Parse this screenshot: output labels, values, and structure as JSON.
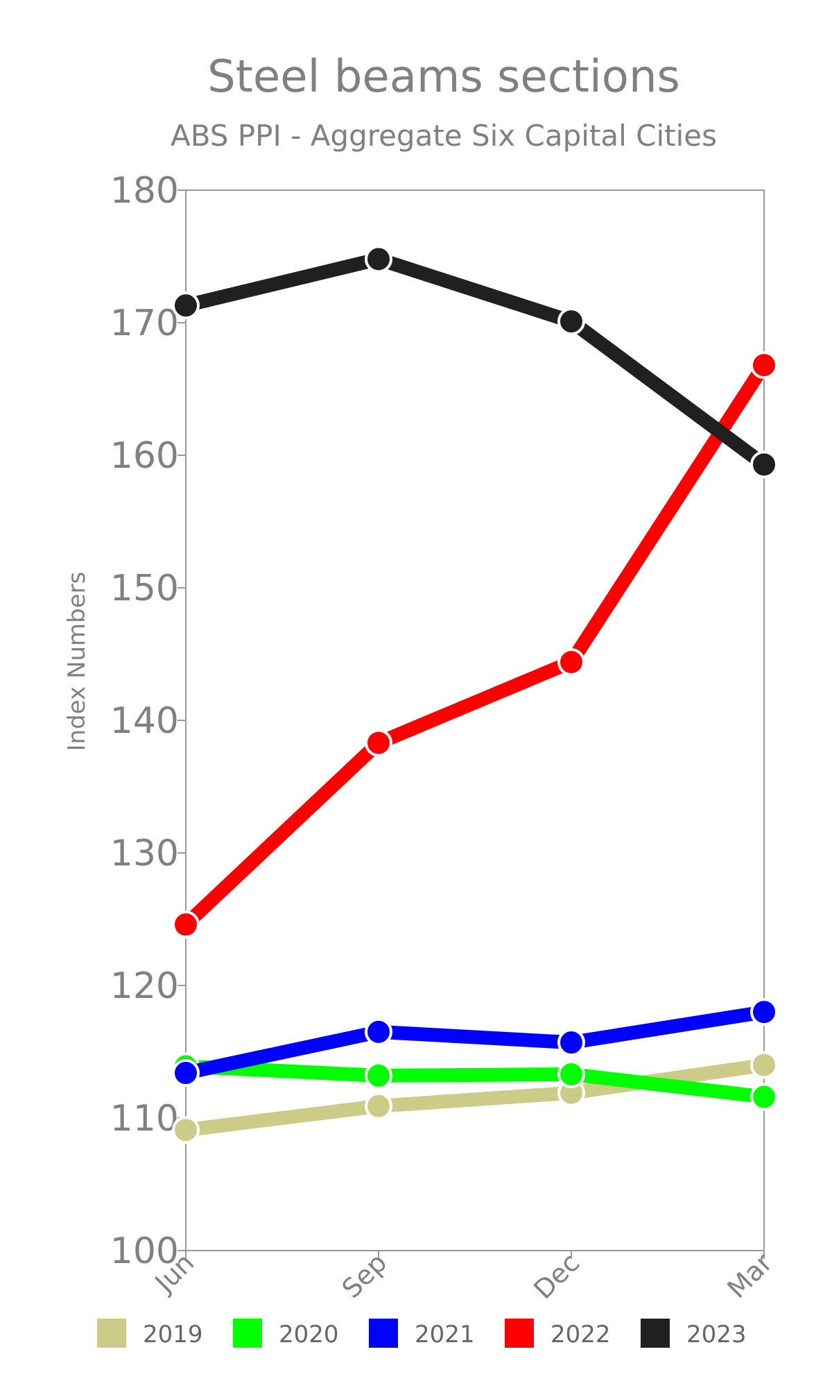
{
  "chart_data": {
    "type": "line",
    "title": "Steel beams sections",
    "subtitle": "ABS PPI - Aggregate Six Capital Cities",
    "xlabel": "",
    "ylabel": "Index Numbers",
    "categories": [
      "Jun",
      "Sep",
      "Dec",
      "Mar"
    ],
    "ylim": [
      100,
      180
    ],
    "y_ticks": [
      "100",
      "110",
      "120",
      "130",
      "140",
      "150",
      "160",
      "170",
      "180"
    ],
    "grid": false,
    "legend_position": "bottom",
    "series": [
      {
        "name": "2019",
        "color": "#cccc88",
        "values": [
          109.1,
          110.9,
          111.9,
          114.0
        ]
      },
      {
        "name": "2020",
        "color": "#00ff00",
        "values": [
          113.9,
          113.2,
          113.3,
          111.6
        ]
      },
      {
        "name": "2021",
        "color": "#0000ff",
        "values": [
          113.4,
          116.5,
          115.7,
          118.0
        ]
      },
      {
        "name": "2022",
        "color": "#ff0000",
        "values": [
          124.6,
          138.3,
          144.4,
          166.8
        ]
      },
      {
        "name": "2023",
        "color": "#202020",
        "values": [
          171.3,
          174.8,
          170.1,
          159.3
        ]
      }
    ]
  }
}
